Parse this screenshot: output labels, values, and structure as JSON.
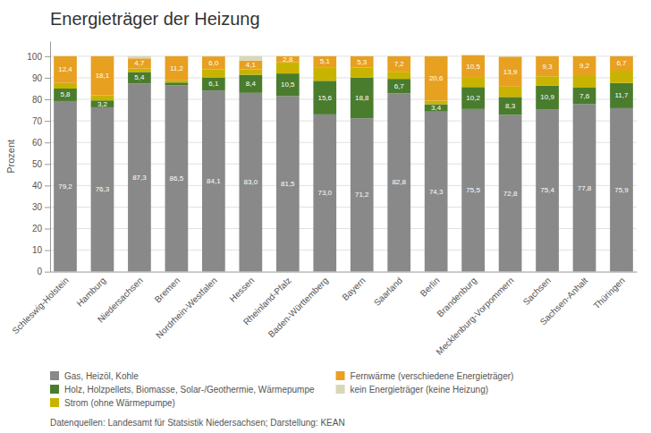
{
  "chart_data": {
    "type": "bar",
    "stacked": true,
    "title": "Energieträger der Heizung",
    "ylabel": "Prozent",
    "categories": [
      "Schleswig-Holstein",
      "Hamburg",
      "Niedersachsen",
      "Bremen",
      "Nordrhein-Westfalen",
      "Hessen",
      "Rheinland-Pfalz",
      "Baden-Württemberg",
      "Bayern",
      "Saarland",
      "Berlin",
      "Brandenburg",
      "Mecklenburg-Vorpommern",
      "Sachsen",
      "Sachsen-Anhalt",
      "Thüringen"
    ],
    "series": [
      {
        "name": "Gas, Heizöl, Kohle",
        "color": "#898989",
        "values": [
          79.2,
          76.3,
          87.3,
          86.5,
          84.1,
          83.0,
          81.5,
          73.0,
          71.2,
          82.8,
          74.3,
          75.5,
          72.8,
          75.4,
          77.8,
          75.9
        ],
        "data_labels": true,
        "value_labels": [
          "79,2",
          "76,3",
          "87,3",
          "86,5",
          "84,1",
          "83,0",
          "81,5",
          "73,0",
          "71,2",
          "82,8",
          "74,3",
          "75,5",
          "72,8",
          "75,4",
          "77,8",
          "75,9"
        ]
      },
      {
        "name": "Holz, Holzpellets, Biomasse, Solar-/Geothermie, Wärmepumpe",
        "color": "#4a7c2e",
        "values": [
          5.8,
          3.2,
          5.4,
          1.3,
          6.1,
          8.4,
          10.5,
          15.6,
          18.8,
          6.7,
          3.4,
          10.2,
          8.3,
          10.9,
          7.6,
          11.7
        ],
        "data_labels": true,
        "value_labels": [
          "5,8",
          "3,2",
          "5,4",
          null,
          "6,1",
          "8,4",
          "10,5",
          "15,6",
          "18,8",
          "6,7",
          "3,4",
          "10,2",
          "8,3",
          "10,9",
          "7,6",
          "11,7"
        ]
      },
      {
        "name": "Strom (ohne Wärmepumpe)",
        "color": "#c8b400",
        "values": [
          2.6,
          2.4,
          1.6,
          1.0,
          3.7,
          2.5,
          5.2,
          6.3,
          4.7,
          3.3,
          1.7,
          4.3,
          4.8,
          4.4,
          5.4,
          5.7
        ]
      },
      {
        "name": "Fernwärme (verschiedene Energieträger)",
        "color": "#e8a020",
        "values": [
          12.4,
          18.1,
          4.7,
          11.2,
          6.0,
          4.1,
          2.8,
          5.1,
          5.3,
          7.2,
          20.6,
          10.5,
          13.9,
          9.3,
          9.2,
          6.7
        ],
        "data_labels": true,
        "value_labels": [
          "12,4",
          "18,1",
          "4,7",
          "11,2",
          "6,0",
          "4,1",
          "2,8",
          "5,1",
          "5,3",
          "7,2",
          "20,6",
          "10,5",
          "13,9",
          "9,3",
          "9,2",
          "6,7"
        ]
      },
      {
        "name": "kein Energieträger (keine Heizung)",
        "color": "#d8d8b8",
        "values": [
          0.0,
          0.0,
          1.0,
          0.0,
          0.1,
          2.0,
          0.0,
          0.0,
          0.0,
          0.0,
          0.0,
          0.0,
          0.2,
          0.0,
          0.0,
          0.0
        ]
      }
    ],
    "ylim": [
      0,
      107
    ],
    "yticks": [
      0,
      10,
      20,
      30,
      40,
      50,
      60,
      70,
      80,
      90,
      100
    ],
    "grid": true,
    "legend": "bottom",
    "annotations": [
      "Datenquellen: Landesamt für Statsistik Niedersachsen; Darstellung: KEAN"
    ]
  }
}
